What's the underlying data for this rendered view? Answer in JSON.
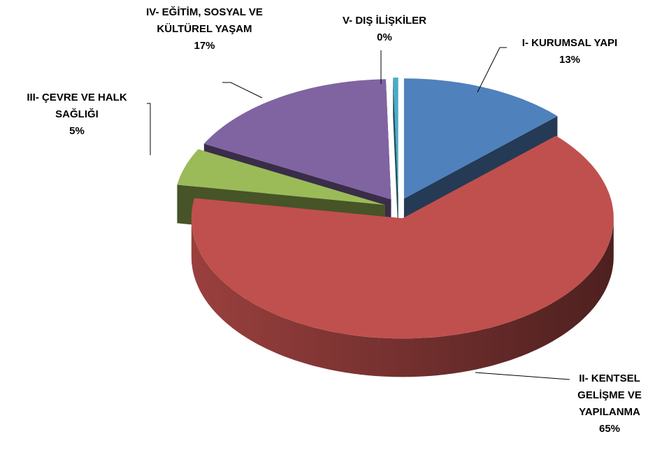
{
  "chart_data": {
    "type": "pie3d",
    "categories": [
      "I- KURUMSAL YAPI",
      "II- KENTSEL GELİŞME VE YAPILANMA",
      "III- ÇEVRE VE HALK SAĞLIĞI",
      "IV- EĞİTİM, SOSYAL VE KÜLTÜREL YAŞAM",
      "V- DIŞ İLİŞKİLER"
    ],
    "values": [
      13,
      65,
      5,
      17,
      0.4
    ],
    "value_labels": [
      "13%",
      "65%",
      "5%",
      "17%",
      "0%"
    ],
    "colors": [
      "#4f81bd",
      "#c0504d",
      "#9bbb59",
      "#8064a2",
      "#4bacc6"
    ]
  }
}
